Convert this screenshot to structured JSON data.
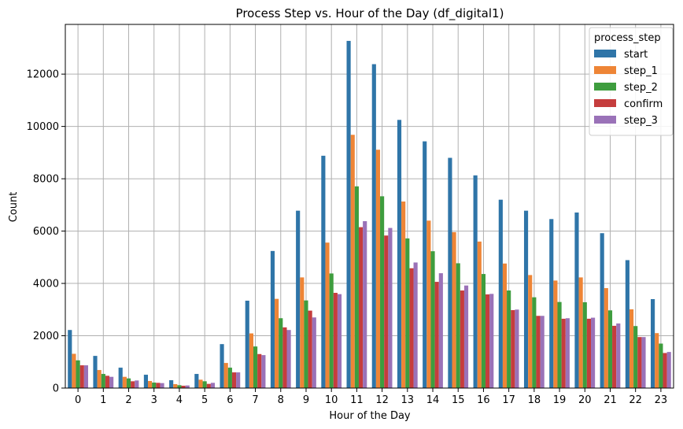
{
  "chart_data": {
    "type": "bar",
    "title": "Process Step vs. Hour of the Day (df_digital1)",
    "xlabel": "Hour of the Day",
    "ylabel": "Count",
    "ylim": [
      0,
      13900
    ],
    "yticks": [
      0,
      2000,
      4000,
      6000,
      8000,
      10000,
      12000
    ],
    "grid": true,
    "legend_title": "process_step",
    "legend_position": "top-right",
    "categories": [
      "0",
      "1",
      "2",
      "3",
      "4",
      "5",
      "6",
      "7",
      "8",
      "9",
      "10",
      "11",
      "12",
      "13",
      "14",
      "15",
      "16",
      "17",
      "18",
      "19",
      "20",
      "21",
      "22",
      "23"
    ],
    "series": [
      {
        "name": "start",
        "color": "#2f75a8",
        "values": [
          2220,
          1230,
          780,
          510,
          300,
          540,
          1680,
          3340,
          5240,
          6780,
          8880,
          13270,
          12380,
          10250,
          9430,
          8800,
          8130,
          7200,
          6780,
          6460,
          6710,
          5920,
          4890,
          3400
        ]
      },
      {
        "name": "step_1",
        "color": "#ee8536",
        "values": [
          1310,
          690,
          430,
          270,
          150,
          320,
          960,
          2090,
          3410,
          4230,
          5560,
          9680,
          9110,
          7130,
          6400,
          5960,
          5600,
          4760,
          4320,
          4110,
          4230,
          3820,
          3010,
          2100
        ]
      },
      {
        "name": "step_2",
        "color": "#3e9d3e",
        "values": [
          1060,
          540,
          370,
          210,
          110,
          260,
          780,
          1590,
          2670,
          3350,
          4380,
          7710,
          7330,
          5720,
          5230,
          4770,
          4360,
          3730,
          3470,
          3290,
          3280,
          2970,
          2370,
          1700
        ]
      },
      {
        "name": "confirm",
        "color": "#c53d3d",
        "values": [
          870,
          470,
          260,
          200,
          90,
          160,
          600,
          1300,
          2320,
          2960,
          3640,
          6150,
          5830,
          4580,
          4060,
          3730,
          3580,
          2980,
          2760,
          2650,
          2650,
          2380,
          1950,
          1340
        ]
      },
      {
        "name": "step_3",
        "color": "#9a72b8",
        "values": [
          870,
          430,
          290,
          190,
          100,
          200,
          600,
          1260,
          2220,
          2700,
          3590,
          6380,
          6120,
          4800,
          4390,
          3920,
          3600,
          3000,
          2760,
          2670,
          2690,
          2470,
          1950,
          1380
        ]
      }
    ]
  }
}
